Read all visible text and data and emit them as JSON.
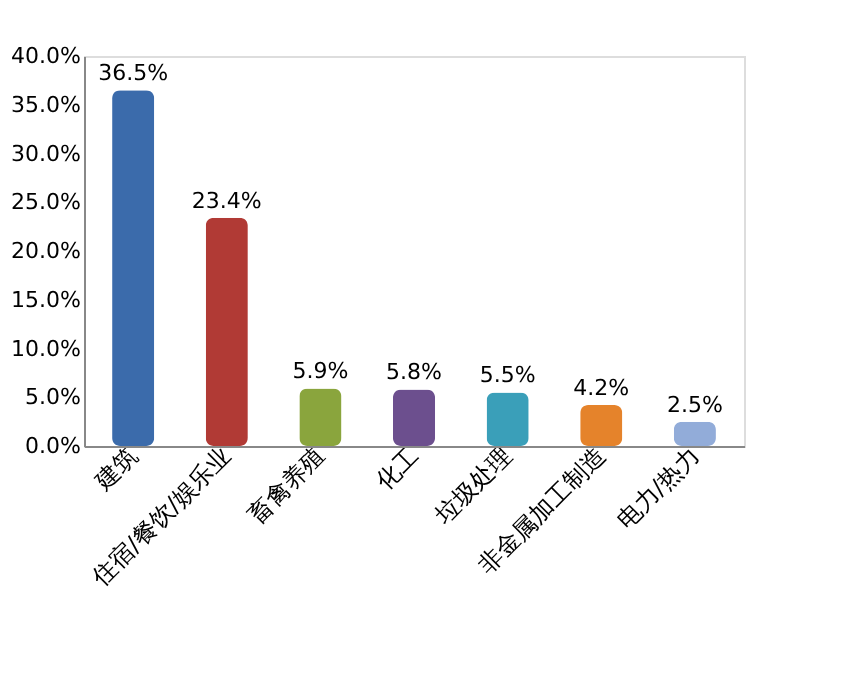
{
  "chart_data": {
    "type": "bar",
    "categories": [
      "建筑",
      "住宿/餐饮/娱乐业",
      "畜禽养殖",
      "化工",
      "垃圾处理",
      "非金属加工制造",
      "电力/热力"
    ],
    "values": [
      36.5,
      23.4,
      5.9,
      5.8,
      5.5,
      4.2,
      2.5
    ],
    "colors": [
      "#3b6bab",
      "#b13a35",
      "#8aa53d",
      "#6c4f8e",
      "#3a9fb9",
      "#e5832b",
      "#92acd9"
    ],
    "value_labels": [
      "36.5%",
      "23.4%",
      "5.9%",
      "5.8%",
      "5.5%",
      "4.2%",
      "2.5%"
    ],
    "ylim": [
      0,
      40
    ],
    "yticks": [
      {
        "value": 0,
        "label": "0.0%"
      },
      {
        "value": 5,
        "label": "5.0%"
      },
      {
        "value": 10,
        "label": "10.0%"
      },
      {
        "value": 15,
        "label": "15.0%"
      },
      {
        "value": 20,
        "label": "20.0%"
      },
      {
        "value": 25,
        "label": "25.0%"
      },
      {
        "value": 30,
        "label": "30.0%"
      },
      {
        "value": 35,
        "label": "35.0%"
      },
      {
        "value": 40,
        "label": "40.0%"
      }
    ],
    "grid": false
  }
}
